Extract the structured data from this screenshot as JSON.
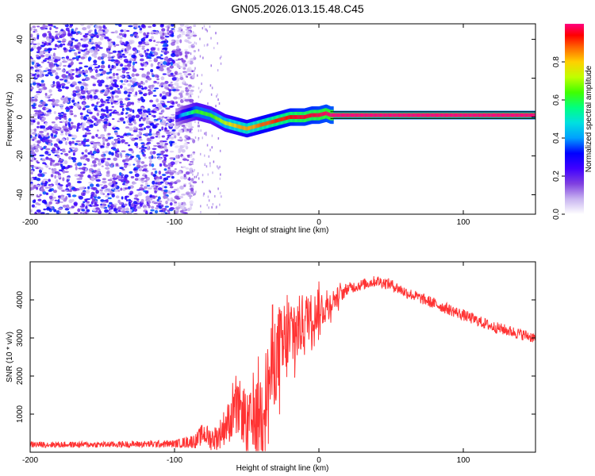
{
  "title": "GN05.2026.013.15.48.C45",
  "chart_data": [
    {
      "type": "heatmap",
      "title": "GN05.2026.013.15.48.C45",
      "xlabel": "Height of straight line (km)",
      "ylabel": "Frequency (Hz)",
      "xlim": [
        -200,
        150
      ],
      "ylim": [
        -50,
        48
      ],
      "xticks": [
        -200,
        -100,
        0,
        100
      ],
      "yticks": [
        -40,
        -20,
        0,
        20,
        40
      ],
      "colorbar": {
        "label": "Normalized spectral amplitude",
        "range": [
          0,
          1
        ],
        "ticks": [
          "0.0",
          "0.2",
          "0.4",
          "0.6",
          "0.8"
        ],
        "colormap": [
          "#ffffff",
          "#c8b4f0",
          "#8040e0",
          "#4000ff",
          "#0000ff",
          "#00a0ff",
          "#00e0e0",
          "#00ff80",
          "#40ff00",
          "#c0ff00",
          "#ffd000",
          "#ff6000",
          "#ff0000",
          "#ff0080"
        ]
      },
      "noise_region_x": [
        -200,
        -90
      ],
      "ridge": {
        "x": [
          -98,
          -95,
          -90,
          -85,
          -80,
          -75,
          -70,
          -65,
          -60,
          -55,
          -50,
          -45,
          -40,
          -35,
          -30,
          -25,
          -20,
          -15,
          -10,
          -5,
          0,
          5,
          8,
          10,
          20,
          50,
          100,
          150
        ],
        "freq": [
          0,
          1,
          2,
          3,
          2,
          1,
          -1,
          -3,
          -4,
          -5,
          -6,
          -5,
          -4,
          -3,
          -2,
          -1,
          0,
          0,
          0,
          1,
          1,
          2,
          1,
          1,
          1,
          1,
          1,
          1
        ],
        "amplitude": [
          0.3,
          0.4,
          0.5,
          0.6,
          0.6,
          0.6,
          0.65,
          0.7,
          0.75,
          0.8,
          0.8,
          0.8,
          0.85,
          0.85,
          0.9,
          0.9,
          0.92,
          0.95,
          0.95,
          0.95,
          0.97,
          0.98,
          1.0,
          1.0,
          1.0,
          1.0,
          1.0,
          1.0
        ]
      }
    },
    {
      "type": "line",
      "xlabel": "Height of straight line (km)",
      "ylabel": "SNR (10 * v/v)",
      "xlim": [
        -200,
        150
      ],
      "ylim": [
        0,
        5000
      ],
      "xticks": [
        -200,
        -100,
        0,
        100
      ],
      "yticks": [
        1000,
        2000,
        3000,
        4000
      ],
      "series": [
        {
          "name": "SNR",
          "color": "#ff3333",
          "x": [
            -200,
            -150,
            -100,
            -85,
            -80,
            -75,
            -70,
            -65,
            -60,
            -55,
            -50,
            -45,
            -40,
            -35,
            -30,
            -25,
            -20,
            -15,
            -10,
            -5,
            0,
            5,
            10,
            20,
            30,
            40,
            50,
            60,
            80,
            100,
            120,
            150
          ],
          "values": [
            200,
            200,
            220,
            300,
            500,
            350,
            400,
            700,
            900,
            1200,
            700,
            800,
            1200,
            1800,
            2500,
            2700,
            3000,
            3200,
            3500,
            3600,
            3700,
            3800,
            4000,
            4300,
            4400,
            4500,
            4400,
            4200,
            3900,
            3600,
            3300,
            3000
          ],
          "spread": [
            80,
            80,
            100,
            200,
            300,
            300,
            350,
            500,
            600,
            700,
            800,
            900,
            1000,
            1200,
            1200,
            1100,
            1000,
            900,
            700,
            600,
            500,
            400,
            300,
            150,
            150,
            150,
            150,
            150,
            150,
            150,
            150,
            150
          ]
        }
      ]
    }
  ]
}
